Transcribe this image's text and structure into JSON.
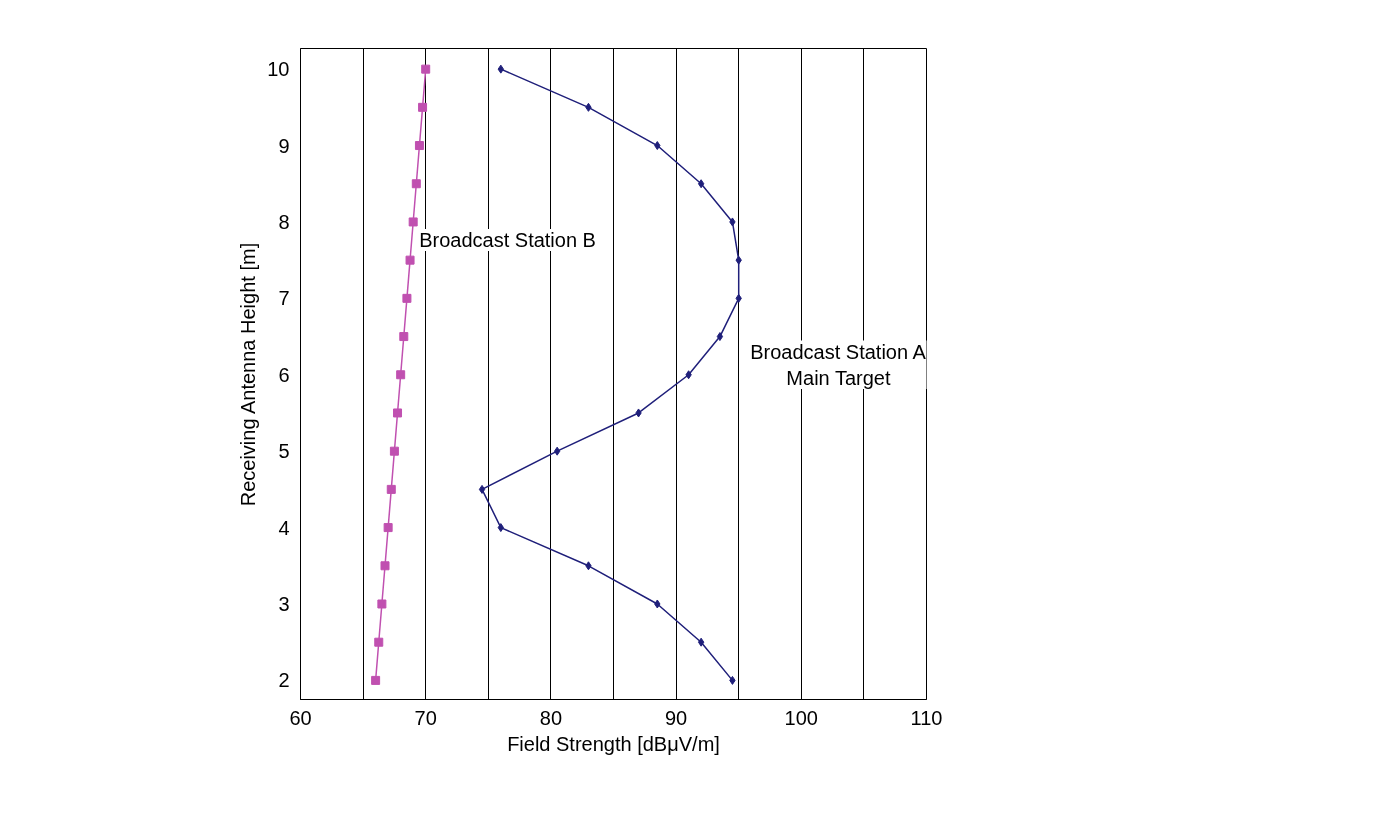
{
  "chart_data": {
    "type": "line",
    "xlabel": "Field Strength [dBμV/m]",
    "ylabel": "Receiving Antenna Height [m]",
    "xlim": [
      60,
      110
    ],
    "xticks": [
      60,
      70,
      80,
      90,
      100,
      110
    ],
    "ylim": [
      1.75,
      10.27
    ],
    "yticks": [
      2,
      3,
      4,
      5,
      6,
      7,
      8,
      9,
      10
    ],
    "grid": "x",
    "series": [
      {
        "name": "Broadcast Station A\nMain Target",
        "color": "#1f1f7a",
        "marker": "diamond",
        "x": [
          94.5,
          92,
          88.5,
          83,
          76,
          74.5,
          80.5,
          87,
          91,
          93.5,
          95,
          95,
          94.5,
          92,
          88.5,
          83,
          76
        ],
        "values": [
          2,
          2.5,
          3,
          3.5,
          4,
          4.5,
          5,
          5.5,
          6,
          6.5,
          7,
          7.5,
          8,
          8.5,
          9,
          9.5,
          10
        ]
      },
      {
        "name": "Broadcast Station B",
        "color": "#c050b0",
        "marker": "square",
        "x": [
          66,
          66.25,
          66.5,
          66.75,
          67,
          67.25,
          67.5,
          67.75,
          68,
          68.25,
          68.5,
          68.75,
          69,
          69.25,
          69.5,
          69.75,
          70
        ],
        "values": [
          2,
          2.5,
          3,
          3.5,
          4,
          4.5,
          5,
          5.5,
          6,
          6.5,
          7,
          7.5,
          8,
          8.5,
          9,
          9.5,
          10
        ]
      }
    ]
  }
}
